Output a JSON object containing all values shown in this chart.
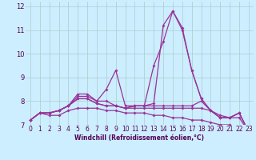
{
  "title": "",
  "xlabel": "Windchill (Refroidissement éolien,°C)",
  "bg_color": "#cceeff",
  "line_color": "#993399",
  "grid_color": "#aacccc",
  "xlim": [
    -0.5,
    23.5
  ],
  "ylim": [
    7.0,
    12.2
  ],
  "yticks": [
    7,
    8,
    9,
    10,
    11,
    12
  ],
  "xticks": [
    0,
    1,
    2,
    3,
    4,
    5,
    6,
    7,
    8,
    9,
    10,
    11,
    12,
    13,
    14,
    15,
    16,
    17,
    18,
    19,
    20,
    21,
    22,
    23
  ],
  "line1": [
    7.2,
    7.5,
    7.5,
    7.6,
    7.8,
    8.3,
    8.3,
    8.0,
    8.5,
    9.3,
    7.8,
    7.8,
    7.8,
    7.8,
    7.8,
    7.8,
    7.8,
    7.8,
    8.0,
    7.6,
    7.3,
    7.3,
    7.5,
    6.7
  ],
  "line2": [
    7.2,
    7.5,
    7.5,
    7.6,
    7.8,
    8.2,
    8.2,
    8.0,
    8.0,
    7.8,
    7.7,
    7.8,
    7.8,
    7.9,
    11.2,
    11.8,
    11.1,
    9.3,
    8.1,
    7.6,
    7.3,
    7.3,
    7.5,
    6.7
  ],
  "line3": [
    7.2,
    7.5,
    7.5,
    7.6,
    7.8,
    8.1,
    8.1,
    7.9,
    7.8,
    7.8,
    7.7,
    7.8,
    7.8,
    9.5,
    10.5,
    11.8,
    11.0,
    9.3,
    8.1,
    7.6,
    7.3,
    7.3,
    7.5,
    6.7
  ],
  "line4": [
    7.2,
    7.5,
    7.5,
    7.6,
    7.8,
    8.1,
    8.1,
    7.9,
    7.8,
    7.8,
    7.7,
    7.7,
    7.7,
    7.7,
    7.7,
    7.7,
    7.7,
    7.7,
    7.7,
    7.6,
    7.4,
    7.3,
    7.3,
    6.7
  ],
  "line5": [
    7.2,
    7.5,
    7.4,
    7.4,
    7.6,
    7.7,
    7.7,
    7.7,
    7.6,
    7.6,
    7.5,
    7.5,
    7.5,
    7.4,
    7.4,
    7.3,
    7.3,
    7.2,
    7.2,
    7.1,
    7.0,
    7.0,
    6.9,
    6.7
  ],
  "tick_fontsize": 5.5,
  "xlabel_fontsize": 5.5,
  "marker_size": 2.0,
  "line_width": 0.9
}
